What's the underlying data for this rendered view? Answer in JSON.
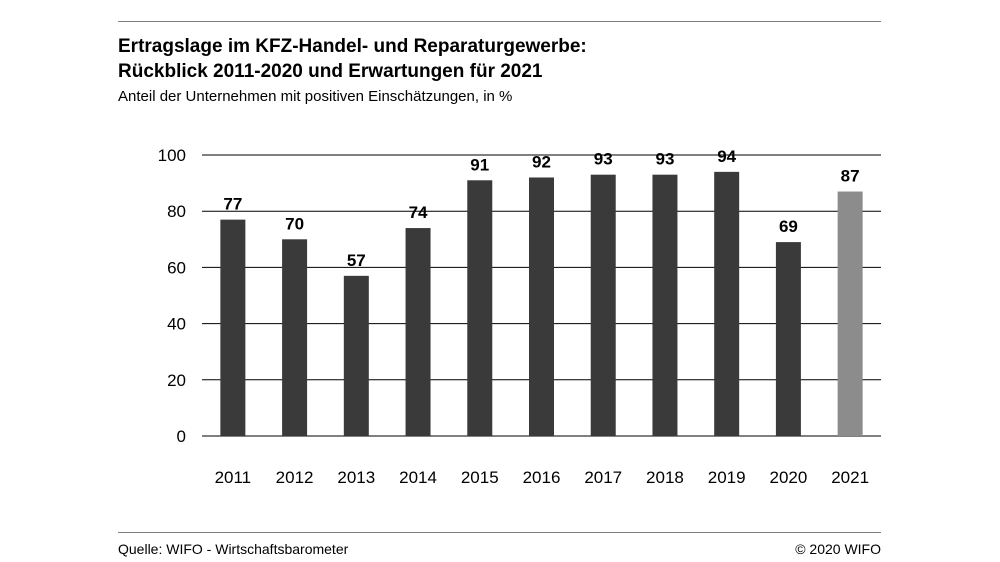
{
  "header": {
    "title_line1": "Ertragslage im KFZ-Handel- und Reparaturgewerbe:",
    "title_line2": "Rückblick 2011-2020 und Erwartungen für 2021",
    "subtitle": "Anteil der Unternehmen mit positiven Einschätzungen, in %"
  },
  "footer": {
    "source": "Quelle: WIFO - Wirtschaftsbarometer",
    "copyright": "© 2020 WIFO"
  },
  "chart_data": {
    "type": "bar",
    "title": "Ertragslage im KFZ-Handel- und Reparaturgewerbe: Rückblick 2011-2020 und Erwartungen für 2021",
    "subtitle": "Anteil der Unternehmen mit positiven Einschätzungen, in %",
    "categories": [
      "2011",
      "2012",
      "2013",
      "2014",
      "2015",
      "2016",
      "2017",
      "2018",
      "2019",
      "2020",
      "2021"
    ],
    "values": [
      77,
      70,
      57,
      74,
      91,
      92,
      93,
      93,
      94,
      69,
      87
    ],
    "data_labels": [
      "77",
      "70",
      "57",
      "74",
      "91",
      "92",
      "93",
      "93",
      "94",
      "69",
      "87"
    ],
    "yticks": [
      0,
      20,
      40,
      60,
      80,
      100
    ],
    "ylim": [
      0,
      100
    ],
    "xlabel": "",
    "ylabel": "",
    "grid": true,
    "legend": "none",
    "bar_color": "#3a3a3a",
    "highlight_color": "#8c8c8c",
    "highlight_categories": [
      "2021"
    ]
  }
}
